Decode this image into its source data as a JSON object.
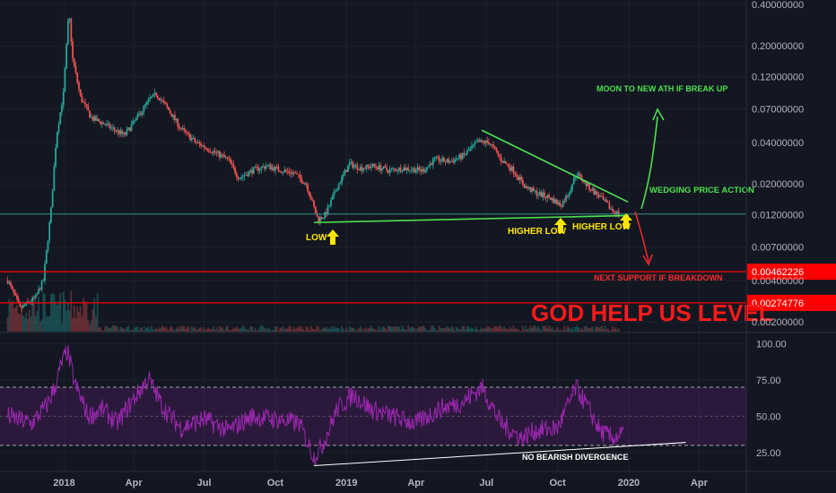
{
  "chart_data": [
    {
      "type": "candlestick",
      "scale": "log",
      "ylim": [
        0.0017,
        0.43
      ],
      "xlim": [
        "2017-10-10",
        "2020-06-01"
      ],
      "x_ticks": [
        {
          "date": "2018-01-01",
          "label": "2018"
        },
        {
          "date": "2018-04-01",
          "label": "Apr"
        },
        {
          "date": "2018-07-01",
          "label": "Jul"
        },
        {
          "date": "2018-10-01",
          "label": "Oct"
        },
        {
          "date": "2019-01-01",
          "label": "2019"
        },
        {
          "date": "2019-04-01",
          "label": "Apr"
        },
        {
          "date": "2019-07-01",
          "label": "Jul"
        },
        {
          "date": "2019-10-01",
          "label": "Oct"
        },
        {
          "date": "2020-01-01",
          "label": "2020"
        },
        {
          "date": "2020-04-01",
          "label": "Apr"
        }
      ],
      "y_ticks": [
        {
          "value": 0.4,
          "label": "0.40000000"
        },
        {
          "value": 0.2,
          "label": "0.20000000"
        },
        {
          "value": 0.12,
          "label": "0.12000000"
        },
        {
          "value": 0.07,
          "label": "0.07000000"
        },
        {
          "value": 0.04,
          "label": "0.04000000"
        },
        {
          "value": 0.02,
          "label": "0.02000000"
        },
        {
          "value": 0.012,
          "label": "0.01200000"
        },
        {
          "value": 0.007,
          "label": "0.00700000"
        },
        {
          "value": 0.004,
          "label": "0.00400000"
        },
        {
          "value": 0.002,
          "label": "0.00200000"
        }
      ],
      "price_anchors": [
        [
          "2017-10-20",
          0.004
        ],
        [
          "2017-11-05",
          0.0025
        ],
        [
          "2017-11-25",
          0.003
        ],
        [
          "2017-12-05",
          0.004
        ],
        [
          "2017-12-15",
          0.013
        ],
        [
          "2017-12-22",
          0.045
        ],
        [
          "2017-12-31",
          0.09
        ],
        [
          "2018-01-07",
          0.36
        ],
        [
          "2018-01-12",
          0.16
        ],
        [
          "2018-01-22",
          0.085
        ],
        [
          "2018-02-05",
          0.06
        ],
        [
          "2018-02-20",
          0.055
        ],
        [
          "2018-03-05",
          0.05
        ],
        [
          "2018-03-20",
          0.045
        ],
        [
          "2018-04-05",
          0.06
        ],
        [
          "2018-04-20",
          0.08
        ],
        [
          "2018-04-30",
          0.09
        ],
        [
          "2018-05-15",
          0.07
        ],
        [
          "2018-06-01",
          0.05
        ],
        [
          "2018-06-20",
          0.04
        ],
        [
          "2018-07-10",
          0.035
        ],
        [
          "2018-08-01",
          0.03
        ],
        [
          "2018-08-15",
          0.022
        ],
        [
          "2018-09-01",
          0.025
        ],
        [
          "2018-09-20",
          0.027
        ],
        [
          "2018-10-10",
          0.025
        ],
        [
          "2018-10-25",
          0.024
        ],
        [
          "2018-11-10",
          0.02
        ],
        [
          "2018-11-25",
          0.011
        ],
        [
          "2018-12-05",
          0.012
        ],
        [
          "2018-12-20",
          0.019
        ],
        [
          "2019-01-05",
          0.028
        ],
        [
          "2019-01-20",
          0.026
        ],
        [
          "2019-02-05",
          0.027
        ],
        [
          "2019-02-25",
          0.025
        ],
        [
          "2019-03-15",
          0.026
        ],
        [
          "2019-04-10",
          0.025
        ],
        [
          "2019-04-25",
          0.03
        ],
        [
          "2019-05-15",
          0.029
        ],
        [
          "2019-06-01",
          0.032
        ],
        [
          "2019-06-20",
          0.04
        ],
        [
          "2019-07-05",
          0.04
        ],
        [
          "2019-07-20",
          0.03
        ],
        [
          "2019-08-05",
          0.025
        ],
        [
          "2019-08-20",
          0.019
        ],
        [
          "2019-09-05",
          0.017
        ],
        [
          "2019-09-20",
          0.016
        ],
        [
          "2019-10-05",
          0.014
        ],
        [
          "2019-10-15",
          0.017
        ],
        [
          "2019-10-25",
          0.024
        ],
        [
          "2019-11-10",
          0.019
        ],
        [
          "2019-11-25",
          0.016
        ],
        [
          "2019-12-10",
          0.013
        ],
        [
          "2019-12-20",
          0.012
        ]
      ],
      "horizontal_levels": [
        {
          "value": 0.00462226,
          "label": "0.00462226",
          "color": "#ff0000"
        },
        {
          "value": 0.00274776,
          "label": "0.00274776",
          "color": "#ff0000"
        }
      ],
      "trendlines": [
        {
          "name": "support",
          "color": "#4ee04e",
          "from": [
            "2018-11-20",
            0.0105
          ],
          "to": [
            "2020-01-01",
            0.0118
          ]
        },
        {
          "name": "resistance",
          "color": "#4ee04e",
          "from": [
            "2019-06-25",
            0.049
          ],
          "to": [
            "2019-12-31",
            0.0148
          ]
        },
        {
          "name": "horizontal",
          "color": "#2e8c8a",
          "from": [
            "2017-10-10",
            0.0121
          ],
          "to": [
            "2020-06-01",
            0.0121
          ]
        }
      ],
      "annotations": [
        {
          "text": "LOW",
          "color": "#ffe600"
        },
        {
          "text": "HIGHER LOW",
          "color": "#ffe600"
        },
        {
          "text": "HIGHER LOW",
          "color": "#ffe600"
        },
        {
          "text": "MOON TO NEW ATH IF BREAK UP",
          "color": "#4ee04e"
        },
        {
          "text": "WEDGING PRICE ACTION",
          "color": "#4ee04e"
        },
        {
          "text": "NEXT SUPPORT IF BREAKDOWN",
          "color": "#ff2b2b"
        },
        {
          "text": "GOD HELP US LEVEL",
          "color": "#ff1a1a"
        }
      ],
      "colors": {
        "up": "#26a69a",
        "down": "#ef5350",
        "background": "#131722"
      }
    },
    {
      "type": "line",
      "indicator": "RSI",
      "ylim": [
        12,
        107
      ],
      "y_ticks": [
        {
          "value": 100,
          "label": "100.00"
        },
        {
          "value": 75,
          "label": "75.00"
        },
        {
          "value": 50,
          "label": "50.00"
        },
        {
          "value": 25,
          "label": "25.00"
        }
      ],
      "band": [
        30,
        70
      ],
      "rsi_anchors": [
        [
          "2017-10-20",
          50
        ],
        [
          "2017-11-20",
          45
        ],
        [
          "2017-12-10",
          58
        ],
        [
          "2017-12-20",
          70
        ],
        [
          "2017-12-28",
          85
        ],
        [
          "2018-01-05",
          95
        ],
        [
          "2018-01-15",
          72
        ],
        [
          "2018-02-01",
          50
        ],
        [
          "2018-02-20",
          55
        ],
        [
          "2018-03-10",
          45
        ],
        [
          "2018-04-01",
          62
        ],
        [
          "2018-04-20",
          76
        ],
        [
          "2018-05-10",
          55
        ],
        [
          "2018-06-01",
          42
        ],
        [
          "2018-07-01",
          48
        ],
        [
          "2018-08-01",
          40
        ],
        [
          "2018-09-01",
          50
        ],
        [
          "2018-10-01",
          48
        ],
        [
          "2018-11-01",
          45
        ],
        [
          "2018-11-20",
          22
        ],
        [
          "2018-12-01",
          30
        ],
        [
          "2018-12-20",
          55
        ],
        [
          "2019-01-10",
          65
        ],
        [
          "2019-02-01",
          55
        ],
        [
          "2019-03-01",
          50
        ],
        [
          "2019-04-01",
          45
        ],
        [
          "2019-05-01",
          55
        ],
        [
          "2019-06-01",
          60
        ],
        [
          "2019-06-25",
          70
        ],
        [
          "2019-07-20",
          45
        ],
        [
          "2019-08-15",
          35
        ],
        [
          "2019-09-01",
          40
        ],
        [
          "2019-10-01",
          42
        ],
        [
          "2019-10-25",
          70
        ],
        [
          "2019-11-10",
          55
        ],
        [
          "2019-11-25",
          40
        ],
        [
          "2019-12-10",
          35
        ],
        [
          "2019-12-25",
          38
        ]
      ],
      "trendline": {
        "color": "#ffffff",
        "from": [
          "2018-11-20",
          16
        ],
        "to": [
          "2020-03-15",
          32
        ]
      },
      "annotation": {
        "text": "NO BEARISH DIVERGENCE",
        "color": "#ffffff"
      },
      "line_color": "#9c27b0",
      "band_color": "#9c27b0"
    }
  ]
}
